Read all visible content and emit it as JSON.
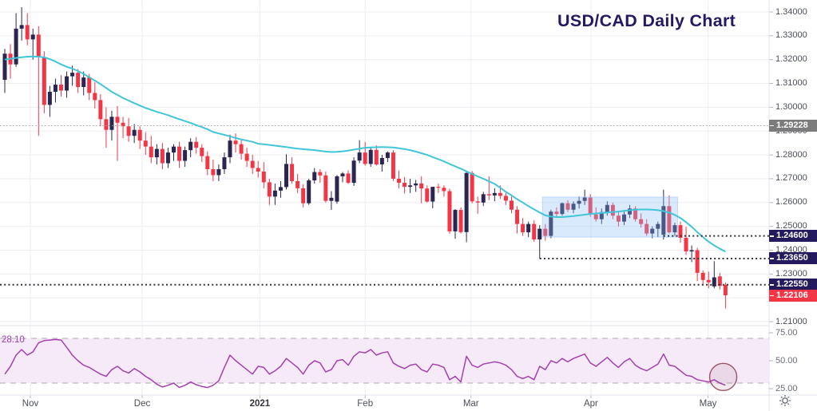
{
  "title": "USD/CAD Daily Chart",
  "colors": {
    "up_candle": "#2b2650",
    "down_candle": "#f23645",
    "sma_line": "#3fc6d8",
    "rsi_line": "#a341ae",
    "rsi_band_fill": "#f5e6f8",
    "rsi_band_dash": "#c4b3c6",
    "grid": "#eceef2",
    "axis_border": "#e0e3eb",
    "level_black": "#30323a",
    "level_gray": "#a3a6ad",
    "flag_navy": "#241a5e",
    "flag_gray": "#7c7c7c",
    "flag_red": "#f23645",
    "box_blue": "#90bff9",
    "circle_stroke": "#8b3a4e",
    "title_navy": "#231a63"
  },
  "price_axis": {
    "tick_labels": [
      "1.34000",
      "1.33000",
      "1.32000",
      "1.31000",
      "1.30000",
      "1.29000",
      "1.28000",
      "1.27000",
      "1.26000",
      "1.25000",
      "1.24000",
      "1.23000",
      "1.22000",
      "1.21000"
    ],
    "special_labels": [
      {
        "text": "1.29228",
        "price": 1.29228,
        "style": "gray"
      },
      {
        "text": "1.24600",
        "price": 1.246,
        "style": "navy"
      },
      {
        "text": "1.23650",
        "price": 1.2365,
        "style": "navy"
      },
      {
        "text": "1.22550",
        "price": 1.2255,
        "style": "navy"
      },
      {
        "text": "1.22106",
        "price": 1.22106,
        "style": "red"
      }
    ]
  },
  "time_axis": {
    "labels": [
      {
        "text": "Nov",
        "index": 5.54,
        "emphasis": false
      },
      {
        "text": "Dec",
        "index": 25.4,
        "emphasis": false
      },
      {
        "text": "2021",
        "index": 46.3,
        "emphasis": true
      },
      {
        "text": "Feb",
        "index": 65.0,
        "emphasis": false
      },
      {
        "text": "Mar",
        "index": 83.8,
        "emphasis": false
      },
      {
        "text": "Apr",
        "index": 105.1,
        "emphasis": false
      },
      {
        "text": "May",
        "index": 125.9,
        "emphasis": false
      }
    ]
  },
  "rsi_panel": {
    "value_label": "28.10",
    "scale_labels": [
      {
        "text": "75.00",
        "value": 75
      },
      {
        "text": "50.00",
        "value": 50
      },
      {
        "text": "25.00",
        "value": 25
      }
    ]
  },
  "chart_data": {
    "type": "candlestick",
    "title": "USD/CAD Daily Chart",
    "timeframe": "Daily",
    "pair": "USD/CAD",
    "ylim": [
      1.21,
      1.34
    ],
    "y_tick_step": 0.01,
    "x_months": [
      "Nov",
      "Dec",
      "2021",
      "Feb",
      "Mar",
      "Apr",
      "May"
    ],
    "current_price": 1.22106,
    "candles": [
      [
        1.3115,
        1.3245,
        1.306,
        1.3225
      ],
      [
        1.3225,
        1.3265,
        1.312,
        1.318
      ],
      [
        1.318,
        1.3395,
        1.317,
        1.333
      ],
      [
        1.333,
        1.342,
        1.328,
        1.3345
      ],
      [
        1.3345,
        1.3395,
        1.326,
        1.3285
      ],
      [
        1.3285,
        1.333,
        1.32,
        1.3305
      ],
      [
        1.3305,
        1.334,
        1.288,
        1.321
      ],
      [
        1.321,
        1.3235,
        1.2975,
        1.301
      ],
      [
        1.301,
        1.309,
        1.296,
        1.3065
      ],
      [
        1.3065,
        1.312,
        1.302,
        1.3095
      ],
      [
        1.3095,
        1.3135,
        1.3045,
        1.307
      ],
      [
        1.307,
        1.315,
        1.304,
        1.313
      ],
      [
        1.313,
        1.3175,
        1.309,
        1.3145
      ],
      [
        1.3145,
        1.316,
        1.306,
        1.3085
      ],
      [
        1.3085,
        1.315,
        1.305,
        1.3125
      ],
      [
        1.3125,
        1.314,
        1.303,
        1.306
      ],
      [
        1.306,
        1.3105,
        1.2995,
        1.303
      ],
      [
        1.303,
        1.3055,
        1.292,
        1.295
      ],
      [
        1.295,
        1.3,
        1.283,
        1.2905
      ],
      [
        1.2905,
        1.2985,
        1.286,
        1.296
      ],
      [
        1.296,
        1.3005,
        1.2775,
        1.2935
      ],
      [
        1.2935,
        1.296,
        1.287,
        1.292
      ],
      [
        1.292,
        1.2955,
        1.2855,
        1.288
      ],
      [
        1.288,
        1.293,
        1.285,
        1.2905
      ],
      [
        1.2905,
        1.292,
        1.2825,
        1.286
      ],
      [
        1.286,
        1.2895,
        1.28,
        1.2835
      ],
      [
        1.2835,
        1.288,
        1.2765,
        1.279
      ],
      [
        1.279,
        1.2845,
        1.276,
        1.2825
      ],
      [
        1.2825,
        1.285,
        1.274,
        1.2765
      ],
      [
        1.2765,
        1.283,
        1.2745,
        1.281
      ],
      [
        1.281,
        1.2845,
        1.2775,
        1.2835
      ],
      [
        1.2835,
        1.2855,
        1.2745,
        1.2775
      ],
      [
        1.2775,
        1.2835,
        1.275,
        1.282
      ],
      [
        1.282,
        1.287,
        1.279,
        1.2855
      ],
      [
        1.2855,
        1.2875,
        1.2805,
        1.283
      ],
      [
        1.283,
        1.2845,
        1.277,
        1.2795
      ],
      [
        1.2795,
        1.2815,
        1.2715,
        1.274
      ],
      [
        1.274,
        1.278,
        1.269,
        1.2715
      ],
      [
        1.2715,
        1.276,
        1.269,
        1.274
      ],
      [
        1.274,
        1.281,
        1.272,
        1.279
      ],
      [
        1.279,
        1.2885,
        1.2765,
        1.286
      ],
      [
        1.286,
        1.289,
        1.281,
        1.2845
      ],
      [
        1.2845,
        1.2865,
        1.278,
        1.2805
      ],
      [
        1.2805,
        1.283,
        1.275,
        1.2775
      ],
      [
        1.2775,
        1.28,
        1.272,
        1.2745
      ],
      [
        1.2745,
        1.2775,
        1.2705,
        1.273
      ],
      [
        1.273,
        1.277,
        1.266,
        1.2685
      ],
      [
        1.2685,
        1.27,
        1.259,
        1.2625
      ],
      [
        1.2625,
        1.268,
        1.259,
        1.265
      ],
      [
        1.265,
        1.269,
        1.262,
        1.2665
      ],
      [
        1.2665,
        1.2803,
        1.2655,
        1.2762
      ],
      [
        1.2762,
        1.279,
        1.268,
        1.269
      ],
      [
        1.269,
        1.272,
        1.264,
        1.266
      ],
      [
        1.266,
        1.2676,
        1.258,
        1.2597
      ],
      [
        1.2597,
        1.27,
        1.259,
        1.2693
      ],
      [
        1.2693,
        1.2745,
        1.268,
        1.2728
      ],
      [
        1.2728,
        1.274,
        1.2683,
        1.2714
      ],
      [
        1.2714,
        1.273,
        1.26,
        1.2607
      ],
      [
        1.2607,
        1.2648,
        1.2569,
        1.262
      ],
      [
        1.2604,
        1.2715,
        1.2595,
        1.271
      ],
      [
        1.271,
        1.2728,
        1.2685,
        1.2722
      ],
      [
        1.2722,
        1.2735,
        1.2678,
        1.2683
      ],
      [
        1.2683,
        1.279,
        1.267,
        1.2776
      ],
      [
        1.2776,
        1.2862,
        1.2765,
        1.281
      ],
      [
        1.281,
        1.2855,
        1.2755,
        1.2762
      ],
      [
        1.2762,
        1.283,
        1.275,
        1.2821
      ],
      [
        1.2821,
        1.284,
        1.2755,
        1.276
      ],
      [
        1.276,
        1.28,
        1.273,
        1.2787
      ],
      [
        1.2787,
        1.2815,
        1.277,
        1.281
      ],
      [
        1.281,
        1.282,
        1.269,
        1.27
      ],
      [
        1.27,
        1.2734,
        1.266,
        1.2683
      ],
      [
        1.2683,
        1.2707,
        1.2638,
        1.2666
      ],
      [
        1.2666,
        1.27,
        1.264,
        1.2672
      ],
      [
        1.2672,
        1.2695,
        1.2645,
        1.268
      ],
      [
        1.268,
        1.271,
        1.2597,
        1.2659
      ],
      [
        1.2659,
        1.2672,
        1.26,
        1.2604
      ],
      [
        1.2604,
        1.2666,
        1.2576,
        1.2666
      ],
      [
        1.2666,
        1.2679,
        1.264,
        1.2662
      ],
      [
        1.2662,
        1.2672,
        1.2625,
        1.2648
      ],
      [
        1.2648,
        1.2658,
        1.2469,
        1.2479
      ],
      [
        1.2479,
        1.2573,
        1.2448,
        1.2569
      ],
      [
        1.2569,
        1.258,
        1.247,
        1.2476
      ],
      [
        1.2476,
        1.273,
        1.2434,
        1.2724
      ],
      [
        1.2724,
        1.2732,
        1.2597,
        1.2605
      ],
      [
        1.2605,
        1.2625,
        1.2552,
        1.26
      ],
      [
        1.26,
        1.2645,
        1.2585,
        1.2635
      ],
      [
        1.2635,
        1.271,
        1.261,
        1.263
      ],
      [
        1.263,
        1.266,
        1.2605,
        1.264
      ],
      [
        1.264,
        1.2672,
        1.2615,
        1.2628
      ],
      [
        1.2628,
        1.264,
        1.259,
        1.2608
      ],
      [
        1.2608,
        1.2625,
        1.2555,
        1.257
      ],
      [
        1.257,
        1.2585,
        1.247,
        1.251
      ],
      [
        1.251,
        1.2535,
        1.246,
        1.2475
      ],
      [
        1.2475,
        1.252,
        1.2455,
        1.251
      ],
      [
        1.251,
        1.2525,
        1.2435,
        1.2445
      ],
      [
        1.2445,
        1.2505,
        1.2365,
        1.249
      ],
      [
        1.249,
        1.251,
        1.244,
        1.246
      ],
      [
        1.246,
        1.257,
        1.245,
        1.2562
      ],
      [
        1.2562,
        1.258,
        1.254,
        1.2552
      ],
      [
        1.2552,
        1.26,
        1.2545,
        1.2597
      ],
      [
        1.2597,
        1.261,
        1.256,
        1.257
      ],
      [
        1.257,
        1.2605,
        1.2555,
        1.2595
      ],
      [
        1.2595,
        1.2625,
        1.2575,
        1.2607
      ],
      [
        1.2607,
        1.2654,
        1.259,
        1.2621
      ],
      [
        1.2621,
        1.2635,
        1.254,
        1.255
      ],
      [
        1.255,
        1.258,
        1.252,
        1.253
      ],
      [
        1.253,
        1.2575,
        1.251,
        1.256
      ],
      [
        1.256,
        1.2605,
        1.2545,
        1.259
      ],
      [
        1.259,
        1.26,
        1.253,
        1.2545
      ],
      [
        1.2545,
        1.256,
        1.25,
        1.252
      ],
      [
        1.252,
        1.2565,
        1.2505,
        1.255
      ],
      [
        1.255,
        1.259,
        1.2535,
        1.2575
      ],
      [
        1.2575,
        1.2585,
        1.252,
        1.253
      ],
      [
        1.253,
        1.2555,
        1.2495,
        1.251
      ],
      [
        1.251,
        1.253,
        1.246,
        1.247
      ],
      [
        1.247,
        1.25,
        1.245,
        1.249
      ],
      [
        1.249,
        1.252,
        1.2455,
        1.251
      ],
      [
        1.2465,
        1.2654,
        1.2445,
        1.2585
      ],
      [
        1.2585,
        1.263,
        1.247,
        1.2475
      ],
      [
        1.2475,
        1.2515,
        1.246,
        1.2505
      ],
      [
        1.2505,
        1.252,
        1.2431,
        1.2452
      ],
      [
        1.2452,
        1.2498,
        1.238,
        1.2395
      ],
      [
        1.2395,
        1.242,
        1.235,
        1.24
      ],
      [
        1.24,
        1.241,
        1.227,
        1.2305
      ],
      [
        1.2305,
        1.2315,
        1.225,
        1.2275
      ],
      [
        1.2275,
        1.231,
        1.224,
        1.2265
      ],
      [
        1.2248,
        1.2354,
        1.224,
        1.2286
      ],
      [
        1.229,
        1.2305,
        1.2235,
        1.225
      ],
      [
        1.2255,
        1.2265,
        1.2155,
        1.22106
      ]
    ],
    "sma": [
      1.32,
      1.3204,
      1.3207,
      1.321,
      1.3212,
      1.3213,
      1.3212,
      1.321,
      1.3202,
      1.3192,
      1.318,
      1.317,
      1.3162,
      1.3152,
      1.314,
      1.3126,
      1.3112,
      1.3097,
      1.3081,
      1.3065,
      1.3052,
      1.3039,
      1.3028,
      1.3017,
      1.3007,
      1.2997,
      1.2989,
      1.2981,
      1.2974,
      1.2967,
      1.2958,
      1.295,
      1.2942,
      1.2934,
      1.2925,
      1.2917,
      1.2908,
      1.2896,
      1.289,
      1.2884,
      1.2878,
      1.2871,
      1.2865,
      1.286,
      1.2855,
      1.2847,
      1.2845,
      1.2842,
      1.2839,
      1.2836,
      1.2833,
      1.2829,
      1.2826,
      1.2824,
      1.2822,
      1.282,
      1.2817,
      1.2814,
      1.2812,
      1.2813,
      1.2815,
      1.2818,
      1.2822,
      1.2826,
      1.283,
      1.2831,
      1.2832,
      1.2833,
      1.2832,
      1.2831,
      1.2828,
      1.2824,
      1.282,
      1.2814,
      1.2807,
      1.28,
      1.2791,
      1.2782,
      1.2773,
      1.2762,
      1.2752,
      1.2742,
      1.2731,
      1.272,
      1.271,
      1.27,
      1.2689,
      1.2678,
      1.2662,
      1.2645,
      1.263,
      1.2614,
      1.26,
      1.2585,
      1.2572,
      1.2558,
      1.2546,
      1.2541,
      1.2539,
      1.2539,
      1.2541,
      1.2543,
      1.2546,
      1.2549,
      1.2552,
      1.2554,
      1.2556,
      1.2558,
      1.256,
      1.2562,
      1.2565,
      1.2568,
      1.257,
      1.2571,
      1.2571,
      1.257,
      1.2568,
      1.2564,
      1.2558,
      1.2548,
      1.2535,
      1.2518,
      1.2498,
      1.2476,
      1.2455,
      1.2436,
      1.242,
      1.2406,
      1.2394
    ],
    "rsi": {
      "values": [
        38,
        45,
        55,
        60,
        55,
        58,
        66,
        68,
        68.5,
        69,
        68.5,
        62,
        55,
        50,
        46,
        44,
        41,
        38,
        36,
        42,
        45,
        41,
        39,
        43,
        40,
        36,
        33,
        29,
        26.5,
        28,
        30,
        26,
        28,
        31,
        28.5,
        27,
        26,
        28,
        32,
        44,
        55,
        50,
        46,
        42,
        38,
        45,
        44,
        38,
        41,
        45,
        52,
        48,
        44,
        38,
        46,
        50,
        48,
        40,
        42,
        50,
        51,
        46,
        54,
        58,
        57,
        60,
        55,
        57,
        58,
        48,
        45,
        43,
        46,
        47,
        42,
        40,
        47,
        46,
        44,
        33,
        36,
        31,
        54,
        46,
        44,
        47,
        48,
        49,
        48,
        46,
        42,
        36,
        34,
        36,
        33,
        45,
        42,
        50,
        48,
        52,
        49,
        52,
        54,
        56,
        48,
        45,
        49,
        53,
        48,
        44,
        49,
        52,
        46,
        43,
        41,
        44,
        47,
        56,
        46,
        45,
        41,
        37,
        36,
        33,
        32,
        31,
        33,
        30,
        28.1
      ],
      "current": 28.1,
      "overbought": 70,
      "oversold": 30,
      "scale_ticks": [
        75,
        50,
        25
      ]
    },
    "levels": [
      {
        "price": 1.29228,
        "style": "gray",
        "start_index": 0
      },
      {
        "price": 1.246,
        "style": "black",
        "start_index": 118
      },
      {
        "price": 1.2365,
        "style": "black",
        "start_index": 96
      },
      {
        "price": 1.2255,
        "style": "black",
        "start_index": 0
      }
    ],
    "consolidation_box": {
      "start_index": 97,
      "end_index": 120,
      "price_top": 1.2623,
      "price_bottom": 1.2455
    },
    "highlight_circle": {
      "index": 128.6,
      "rsi_value": 35.5,
      "radius": 17
    }
  }
}
